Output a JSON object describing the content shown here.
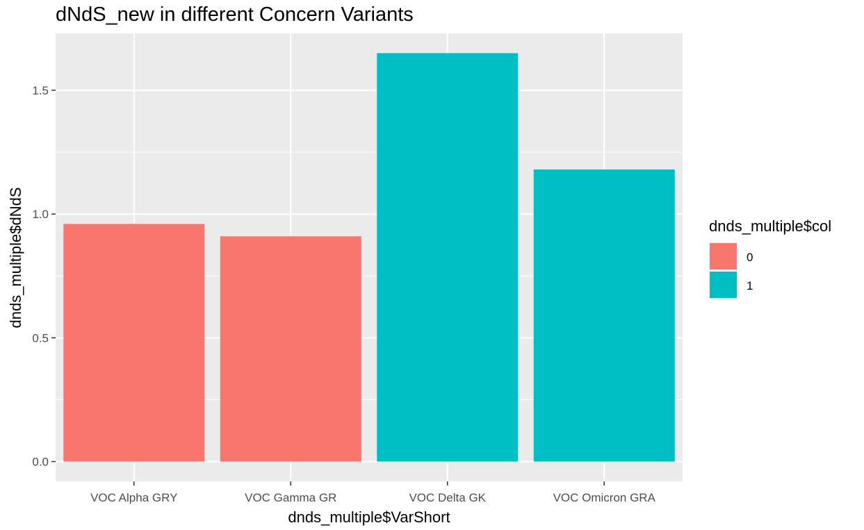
{
  "chart_data": {
    "type": "bar",
    "title": "dNdS_new in different Concern Variants",
    "xlabel": "dnds_multiple$VarShort",
    "ylabel": "dnds_multiple$dNdS",
    "categories": [
      "VOC Alpha GRY",
      "VOC Gamma GR",
      "VOC Delta GK",
      "VOC Omicron GRA"
    ],
    "values": [
      0.96,
      0.91,
      1.65,
      1.18
    ],
    "groups": [
      "0",
      "0",
      "1",
      "1"
    ],
    "ylim": [
      -0.08,
      1.73
    ],
    "yticks": [
      0.0,
      0.5,
      1.0,
      1.5
    ],
    "ytick_labels": [
      "0.0",
      "0.5",
      "1.0",
      "1.5"
    ],
    "grid": true,
    "legend": {
      "title": "dnds_multiple$col",
      "placement": "right",
      "entries": [
        {
          "label": "0",
          "color": "#F8766D"
        },
        {
          "label": "1",
          "color": "#00BFC4"
        }
      ]
    },
    "panel_background": "#EBEBEB",
    "grid_color": "#FFFFFF"
  }
}
